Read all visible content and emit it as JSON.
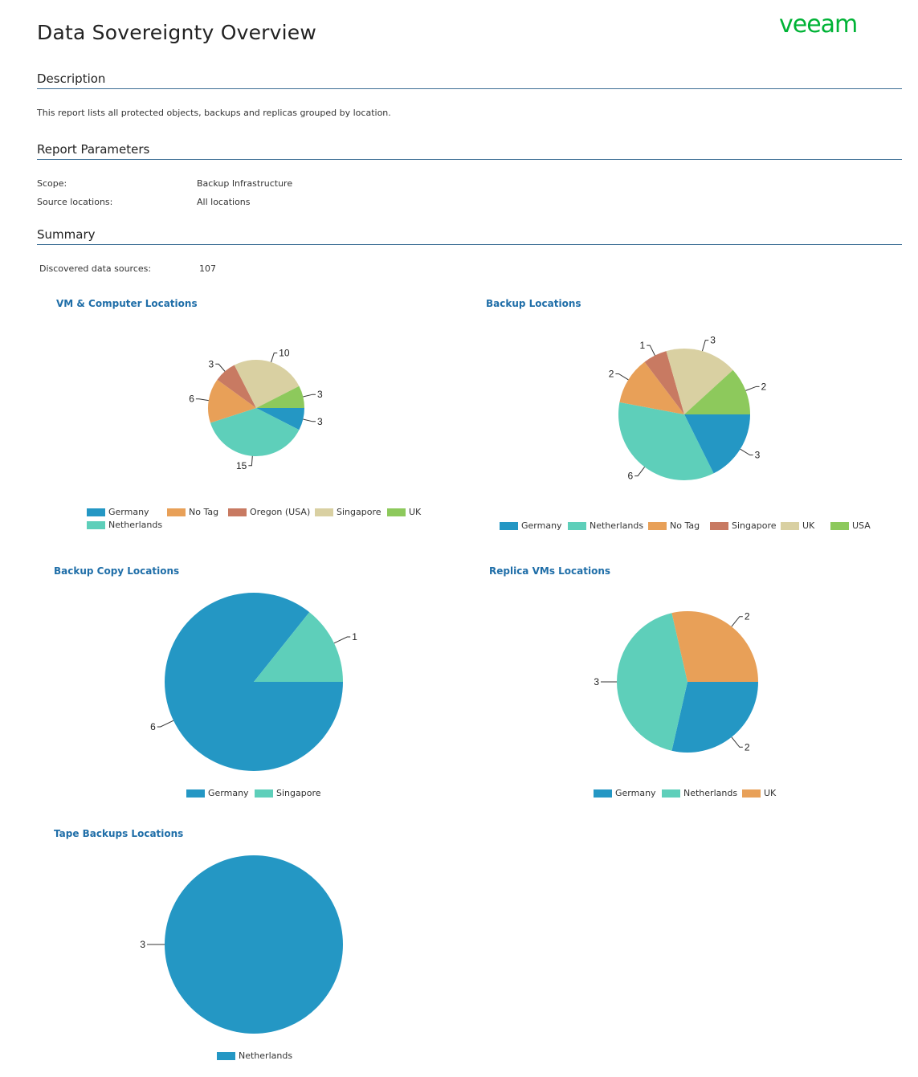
{
  "header": {
    "title": "Data Sovereignty Overview",
    "logo_text": "veeam",
    "logo_color": "#00b336"
  },
  "description": {
    "heading": "Description",
    "text": "This report lists all protected objects, backups and replicas grouped by location."
  },
  "parameters": {
    "heading": "Report Parameters",
    "rows": [
      {
        "label": "Scope:",
        "value": "Backup Infrastructure"
      },
      {
        "label": "Source locations:",
        "value": "All locations"
      }
    ]
  },
  "summary": {
    "heading": "Summary",
    "label": "Discovered data sources:",
    "value": "107"
  },
  "colors": {
    "Germany": "#2497c4",
    "Netherlands": "#5ecfba",
    "No Tag": "#e8a058",
    "Oregon (USA)": "#c87a62",
    "Singapore": "#d9d0a2",
    "UK": "#8dc95c",
    "USA": "#8dc95c",
    "accent": "#1f6ea8"
  },
  "chart_data": [
    {
      "type": "pie",
      "title": "VM & Computer Locations",
      "legend": [
        "Germany",
        "No Tag",
        "Oregon (USA)",
        "Singapore",
        "UK",
        "Netherlands"
      ],
      "slices": [
        {
          "name": "Germany",
          "value": 3,
          "color": "#2497c4"
        },
        {
          "name": "Netherlands",
          "value": 15,
          "color": "#5ecfba"
        },
        {
          "name": "No Tag",
          "value": 6,
          "color": "#e8a058"
        },
        {
          "name": "Oregon (USA)",
          "value": 3,
          "color": "#c87a62"
        },
        {
          "name": "Singapore",
          "value": 10,
          "color": "#d9d0a2"
        },
        {
          "name": "UK",
          "value": 3,
          "color": "#8dc95c"
        }
      ]
    },
    {
      "type": "pie",
      "title": "Backup Locations",
      "legend": [
        "Germany",
        "Netherlands",
        "No Tag",
        "Singapore",
        "UK",
        "USA"
      ],
      "slices": [
        {
          "name": "Germany",
          "value": 3,
          "color": "#2497c4"
        },
        {
          "name": "Netherlands",
          "value": 6,
          "color": "#5ecfba"
        },
        {
          "name": "No Tag",
          "value": 2,
          "color": "#e8a058"
        },
        {
          "name": "Singapore",
          "value": 1,
          "color": "#c87a62"
        },
        {
          "name": "UK",
          "value": 3,
          "color": "#d9d0a2"
        },
        {
          "name": "USA",
          "value": 2,
          "color": "#8dc95c"
        }
      ]
    },
    {
      "type": "pie",
      "title": "Backup Copy Locations",
      "legend": [
        "Germany",
        "Singapore"
      ],
      "slices": [
        {
          "name": "Germany",
          "value": 6,
          "color": "#2497c4"
        },
        {
          "name": "Singapore",
          "value": 1,
          "color": "#5ecfba"
        }
      ]
    },
    {
      "type": "pie",
      "title": "Replica VMs Locations",
      "legend": [
        "Germany",
        "Netherlands",
        "UK"
      ],
      "slices": [
        {
          "name": "Germany",
          "value": 2,
          "color": "#2497c4"
        },
        {
          "name": "Netherlands",
          "value": 3,
          "color": "#5ecfba"
        },
        {
          "name": "UK",
          "value": 2,
          "color": "#e8a058"
        }
      ]
    },
    {
      "type": "pie",
      "title": "Tape Backups Locations",
      "legend": [
        "Netherlands"
      ],
      "slices": [
        {
          "name": "Netherlands",
          "value": 3,
          "color": "#2497c4"
        }
      ]
    }
  ]
}
